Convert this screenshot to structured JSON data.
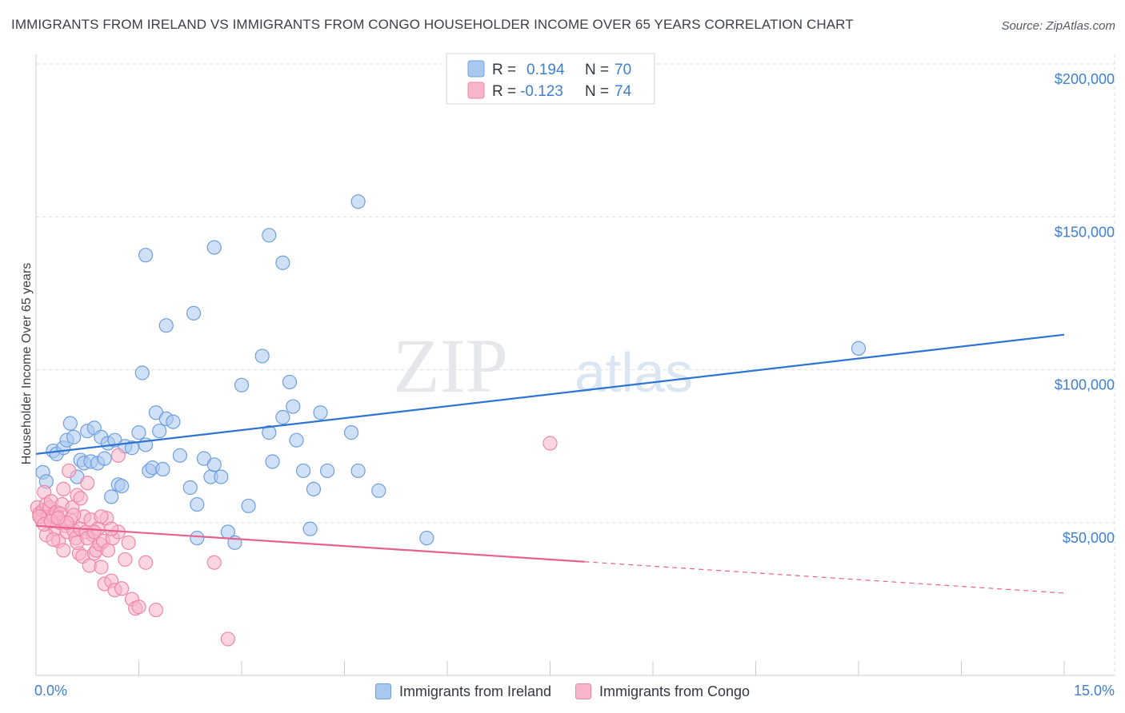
{
  "header": {
    "title": "IMMIGRANTS FROM IRELAND VS IMMIGRANTS FROM CONGO HOUSEHOLDER INCOME OVER 65 YEARS CORRELATION CHART",
    "source": "Source: ZipAtlas.com"
  },
  "watermark": {
    "zip": "ZIP",
    "atlas": "atlas"
  },
  "colors": {
    "ireland_fill": "#a9c8f0",
    "ireland_stroke": "#6f9fdc",
    "ireland_line": "#2f74d0",
    "congo_fill": "#f7b5c9",
    "congo_stroke": "#ef86a8",
    "congo_line": "#e8608e",
    "tick_text": "#3f7fcf",
    "grid": "#d9dde3"
  },
  "stats": {
    "r_label": "R =",
    "n_label": "N =",
    "rows": [
      {
        "r": "0.194",
        "n": "70"
      },
      {
        "r": "-0.123",
        "n": "74"
      }
    ]
  },
  "chart_data": {
    "type": "scatter",
    "title": "IMMIGRANTS FROM IRELAND VS IMMIGRANTS FROM CONGO HOUSEHOLDER INCOME OVER 65 YEARS CORRELATION CHART",
    "xlabel": "",
    "ylabel": "Householder Income Over 65 years",
    "xlim": [
      0,
      15
    ],
    "ylim": [
      0,
      210000
    ],
    "x_unit": "%",
    "x_tick_labels": [
      "0.0%",
      "15.0%"
    ],
    "y_ticks": [
      50000,
      100000,
      150000,
      200000
    ],
    "y_tick_labels": [
      "$50,000",
      "$100,000",
      "$150,000",
      "$200,000"
    ],
    "grid": true,
    "legend_position": "bottom",
    "series": [
      {
        "name": "Immigrants from Ireland",
        "r": 0.194,
        "n": 70,
        "trend": {
          "x": [
            0.0,
            15.0
          ],
          "y": [
            72500,
            111500
          ],
          "dashed_from": null
        },
        "points": [
          [
            0.1,
            66500
          ],
          [
            0.15,
            63500
          ],
          [
            0.25,
            73500
          ],
          [
            0.3,
            72500
          ],
          [
            0.4,
            74500
          ],
          [
            0.45,
            77000
          ],
          [
            0.5,
            82500
          ],
          [
            0.55,
            78000
          ],
          [
            0.6,
            65000
          ],
          [
            0.65,
            70500
          ],
          [
            0.7,
            69500
          ],
          [
            0.75,
            80000
          ],
          [
            0.8,
            70000
          ],
          [
            0.85,
            81000
          ],
          [
            0.9,
            69500
          ],
          [
            0.95,
            78000
          ],
          [
            1.0,
            71000
          ],
          [
            1.05,
            76000
          ],
          [
            1.1,
            58500
          ],
          [
            1.15,
            77000
          ],
          [
            1.2,
            62500
          ],
          [
            1.25,
            62000
          ],
          [
            1.3,
            75000
          ],
          [
            1.4,
            74500
          ],
          [
            1.5,
            79500
          ],
          [
            1.6,
            75500
          ],
          [
            1.65,
            67000
          ],
          [
            1.7,
            68000
          ],
          [
            1.75,
            86000
          ],
          [
            1.8,
            80000
          ],
          [
            1.85,
            67500
          ],
          [
            1.9,
            84000
          ],
          [
            2.0,
            83000
          ],
          [
            2.1,
            72000
          ],
          [
            2.25,
            61500
          ],
          [
            2.35,
            56000
          ],
          [
            2.45,
            71000
          ],
          [
            2.55,
            65000
          ],
          [
            2.6,
            69000
          ],
          [
            2.7,
            65000
          ],
          [
            2.8,
            47000
          ],
          [
            2.9,
            43500
          ],
          [
            3.0,
            95000
          ],
          [
            3.1,
            55500
          ],
          [
            3.3,
            104500
          ],
          [
            3.4,
            79500
          ],
          [
            3.45,
            70000
          ],
          [
            3.6,
            84500
          ],
          [
            3.7,
            96000
          ],
          [
            3.75,
            88000
          ],
          [
            3.8,
            77000
          ],
          [
            3.9,
            67000
          ],
          [
            4.0,
            48000
          ],
          [
            4.05,
            61000
          ],
          [
            4.15,
            86000
          ],
          [
            4.25,
            67000
          ],
          [
            4.6,
            79500
          ],
          [
            4.7,
            67000
          ],
          [
            5.0,
            60500
          ],
          [
            5.7,
            45000
          ],
          [
            12.0,
            107000
          ],
          [
            1.55,
            99000
          ],
          [
            1.9,
            114500
          ],
          [
            2.3,
            118500
          ],
          [
            1.6,
            137500
          ],
          [
            2.6,
            140000
          ],
          [
            3.4,
            144000
          ],
          [
            3.6,
            135000
          ],
          [
            4.7,
            155000
          ],
          [
            2.35,
            45000
          ]
        ]
      },
      {
        "name": "Immigrants from Congo",
        "r": -0.123,
        "n": 74,
        "trend": {
          "x": [
            0.0,
            15.0
          ],
          "y": [
            49000,
            27000
          ],
          "dashed_from": 8.0
        },
        "points": [
          [
            0.02,
            55000
          ],
          [
            0.05,
            53000
          ],
          [
            0.08,
            51000
          ],
          [
            0.1,
            54000
          ],
          [
            0.12,
            60000
          ],
          [
            0.15,
            56000
          ],
          [
            0.18,
            52000
          ],
          [
            0.2,
            55000
          ],
          [
            0.22,
            57000
          ],
          [
            0.25,
            52000
          ],
          [
            0.28,
            48000
          ],
          [
            0.3,
            53500
          ],
          [
            0.33,
            44000
          ],
          [
            0.35,
            50000
          ],
          [
            0.38,
            56000
          ],
          [
            0.4,
            41000
          ],
          [
            0.43,
            49000
          ],
          [
            0.45,
            47000
          ],
          [
            0.48,
            67000
          ],
          [
            0.5,
            51000
          ],
          [
            0.53,
            55000
          ],
          [
            0.55,
            47500
          ],
          [
            0.58,
            45000
          ],
          [
            0.6,
            59000
          ],
          [
            0.63,
            40000
          ],
          [
            0.65,
            48000
          ],
          [
            0.68,
            39000
          ],
          [
            0.7,
            52000
          ],
          [
            0.73,
            47000
          ],
          [
            0.75,
            63000
          ],
          [
            0.78,
            36000
          ],
          [
            0.8,
            51000
          ],
          [
            0.83,
            46000
          ],
          [
            0.85,
            40000
          ],
          [
            0.88,
            41000
          ],
          [
            0.9,
            48000
          ],
          [
            0.93,
            43000
          ],
          [
            0.95,
            35500
          ],
          [
            0.98,
            44000
          ],
          [
            1.0,
            30000
          ],
          [
            1.03,
            51500
          ],
          [
            1.05,
            41000
          ],
          [
            1.1,
            31000
          ],
          [
            1.12,
            45000
          ],
          [
            1.15,
            28000
          ],
          [
            1.2,
            47000
          ],
          [
            1.25,
            28500
          ],
          [
            1.3,
            38000
          ],
          [
            1.35,
            43500
          ],
          [
            1.4,
            25000
          ],
          [
            1.45,
            22000
          ],
          [
            1.5,
            22500
          ],
          [
            1.6,
            37000
          ],
          [
            1.75,
            21500
          ],
          [
            2.6,
            37000
          ],
          [
            2.8,
            12000
          ],
          [
            1.2,
            72000
          ],
          [
            7.5,
            76000
          ],
          [
            0.4,
            61000
          ],
          [
            0.55,
            52500
          ],
          [
            0.65,
            58000
          ],
          [
            0.95,
            52000
          ],
          [
            1.1,
            48000
          ],
          [
            0.15,
            46000
          ],
          [
            0.25,
            44500
          ],
          [
            0.35,
            53000
          ],
          [
            0.45,
            50000
          ],
          [
            0.6,
            43500
          ],
          [
            0.75,
            45000
          ],
          [
            0.85,
            47000
          ],
          [
            0.05,
            52000
          ],
          [
            0.12,
            49500
          ],
          [
            0.22,
            50500
          ],
          [
            0.32,
            51500
          ]
        ]
      }
    ]
  },
  "legend": {
    "items": [
      {
        "label": "Immigrants from Ireland"
      },
      {
        "label": "Immigrants from Congo"
      }
    ]
  }
}
